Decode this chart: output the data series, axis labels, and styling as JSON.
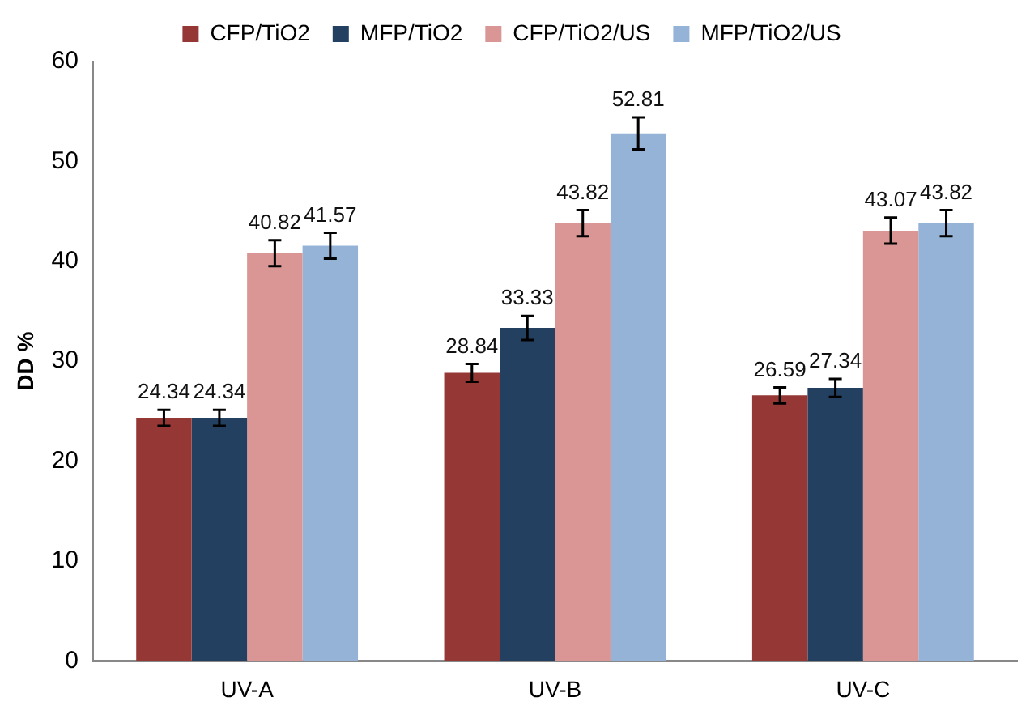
{
  "chart_data": {
    "type": "bar",
    "ylabel": "DD %",
    "categories": [
      "UV-A",
      "UV-B",
      "UV-C"
    ],
    "series": [
      {
        "name": "CFP/TiO2",
        "color": "#953735",
        "values": [
          24.34,
          28.84,
          26.59
        ],
        "errors": [
          0.8,
          0.9,
          0.8
        ]
      },
      {
        "name": "MFP/TiO2",
        "color": "#244061",
        "values": [
          24.34,
          33.33,
          27.34
        ],
        "errors": [
          0.8,
          1.2,
          0.9
        ]
      },
      {
        "name": "CFP/TiO2/US",
        "color": "#d99694",
        "values": [
          40.82,
          43.82,
          43.07
        ],
        "errors": [
          1.3,
          1.3,
          1.3
        ]
      },
      {
        "name": "MFP/TiO2/US",
        "color": "#95b3d7",
        "values": [
          41.57,
          52.81,
          43.82
        ],
        "errors": [
          1.3,
          1.6,
          1.3
        ]
      }
    ],
    "ylim": [
      0,
      60
    ],
    "yticks": [
      0,
      10,
      20,
      30,
      40,
      50,
      60
    ],
    "grid": false,
    "legend": "top",
    "data_labels": true
  }
}
